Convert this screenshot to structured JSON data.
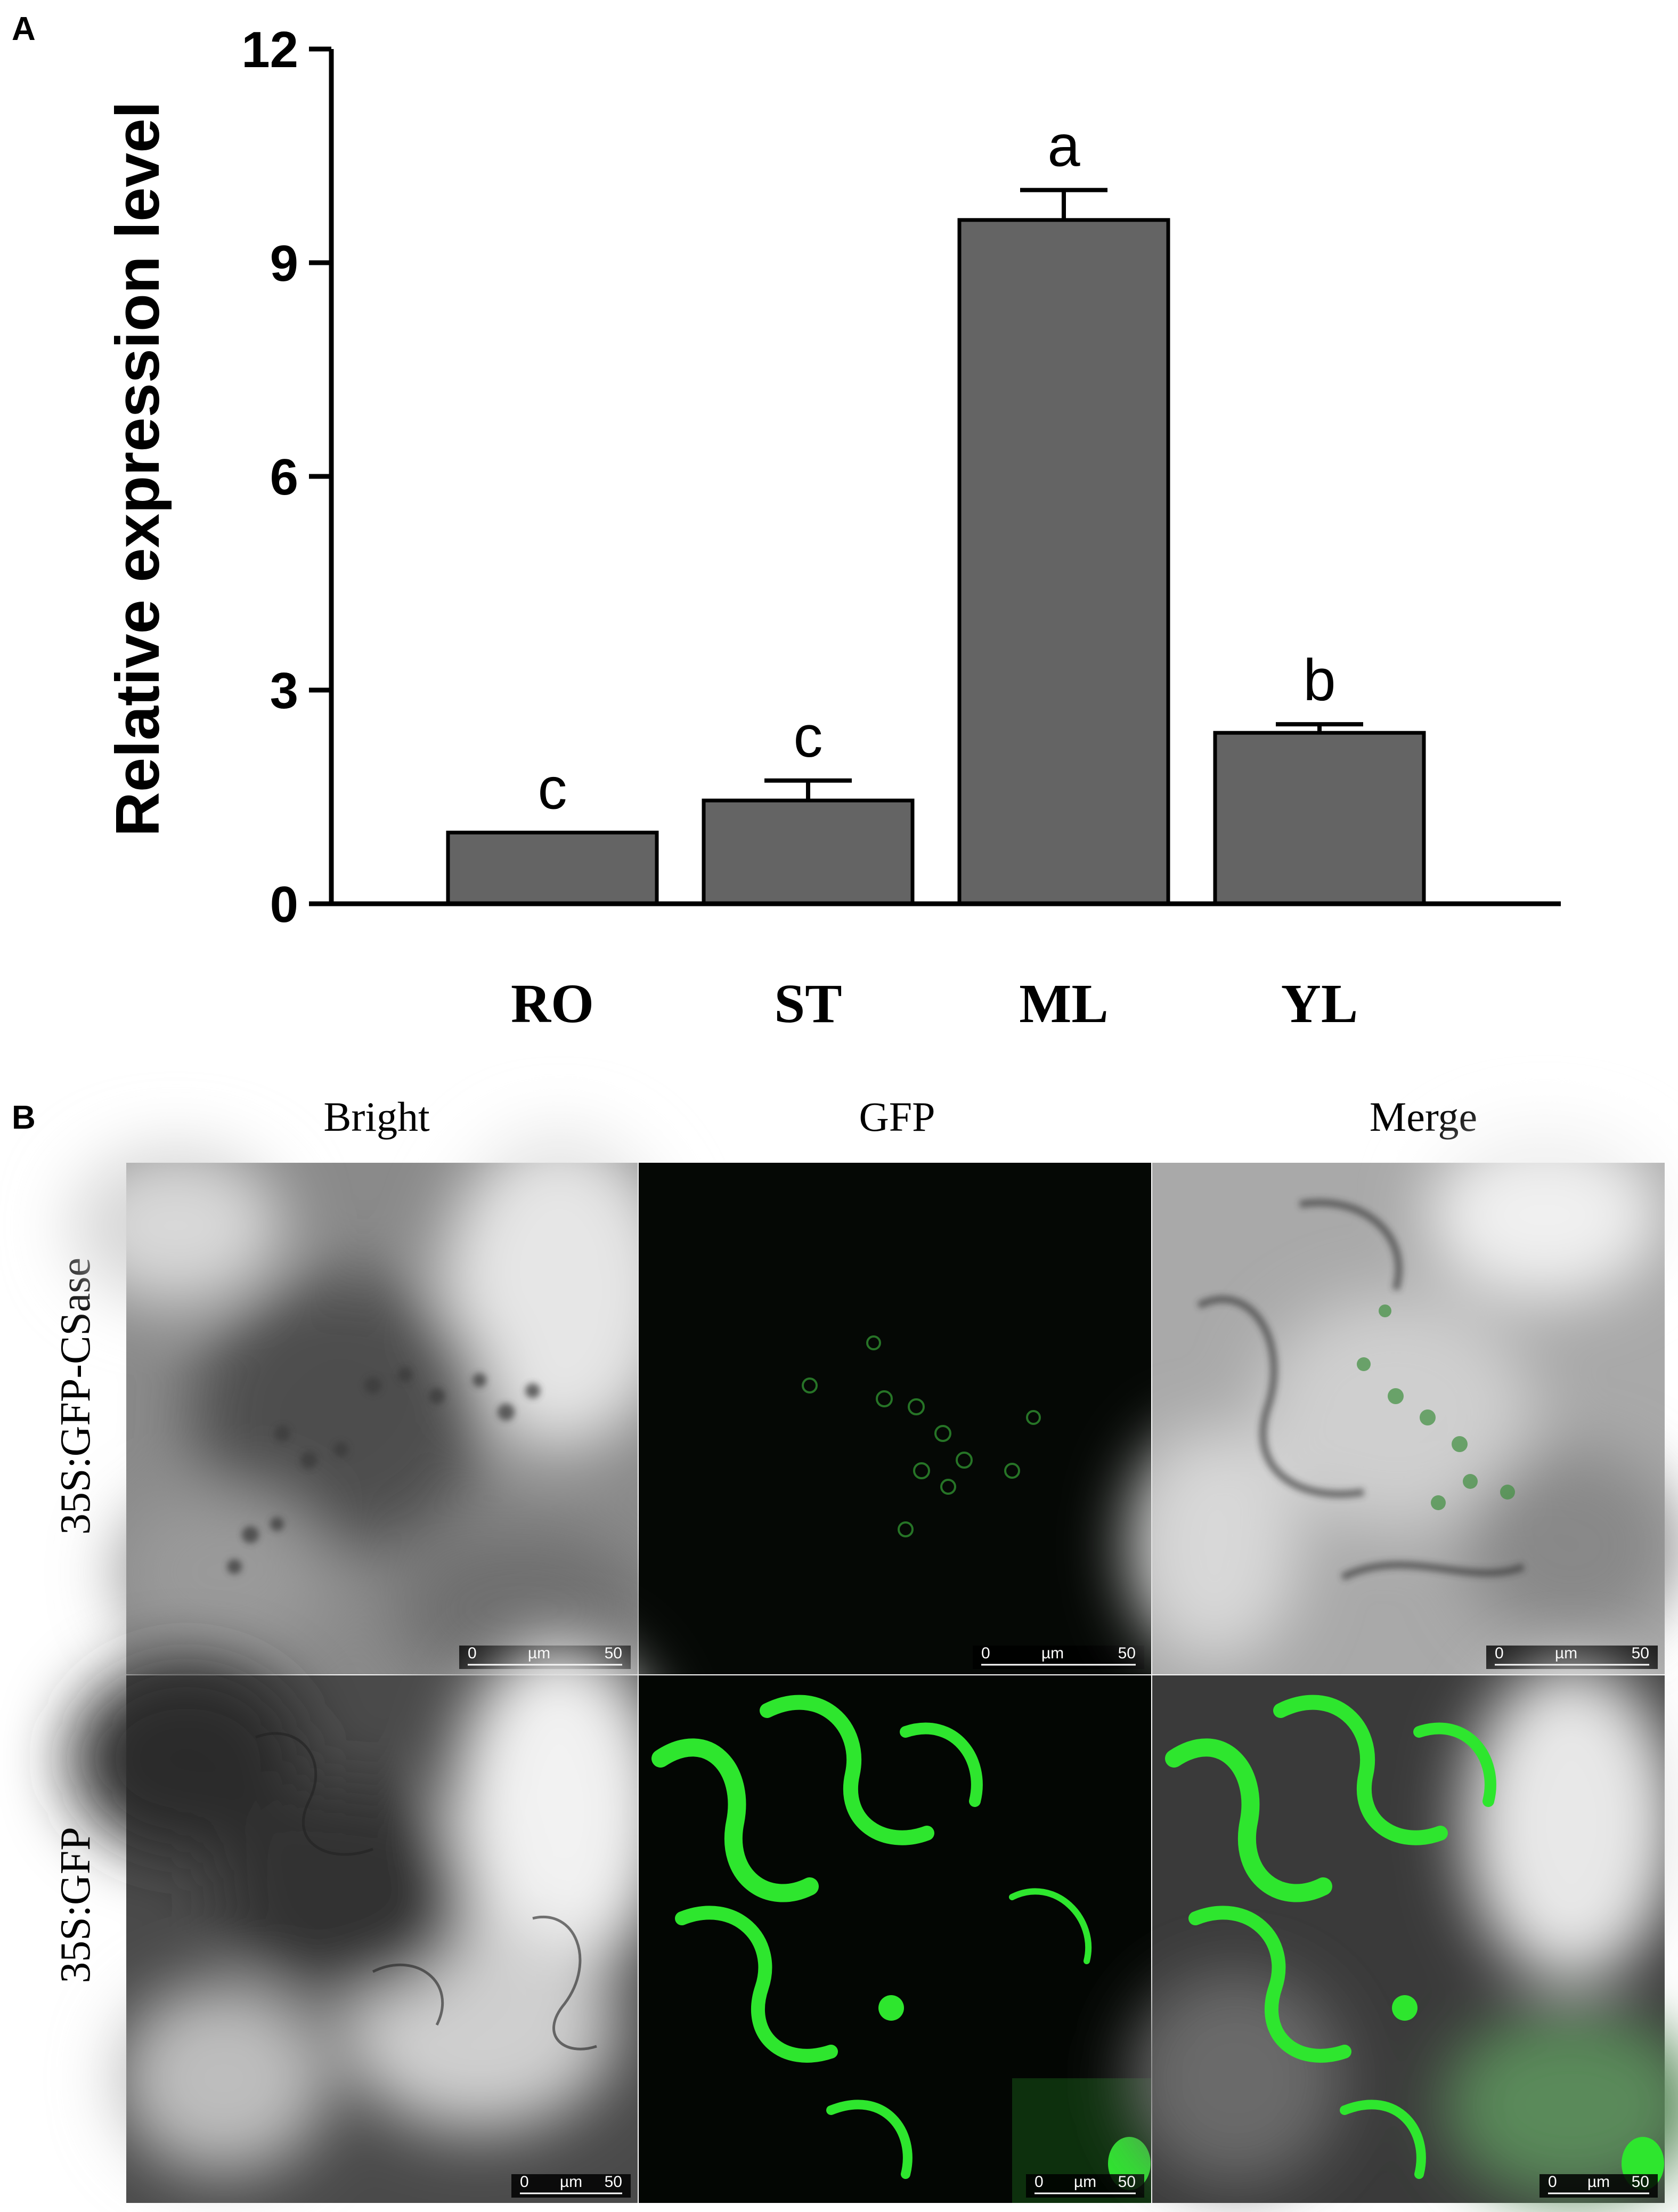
{
  "chart_data": {
    "type": "bar",
    "panel_label": "A",
    "categories": [
      "RO",
      "ST",
      "ML",
      "YL"
    ],
    "values": [
      1.0,
      1.45,
      9.6,
      2.4
    ],
    "errors": [
      0.0,
      0.28,
      0.42,
      0.12
    ],
    "significance": [
      "c",
      "c",
      "a",
      "b"
    ],
    "ylabel": "Relative expression level",
    "ylim": [
      0,
      12
    ],
    "yticks": [
      0,
      3,
      6,
      9,
      12
    ],
    "bar_color": "#646464",
    "grid": false,
    "legend": "none"
  },
  "panel_b": {
    "label": "B",
    "columns": [
      "Bright",
      "GFP",
      "Merge"
    ],
    "rows": [
      "35S:GFP-CSase",
      "35S:GFP"
    ],
    "scale_bar": {
      "start": "0",
      "unit": "µm",
      "end": "50"
    }
  }
}
